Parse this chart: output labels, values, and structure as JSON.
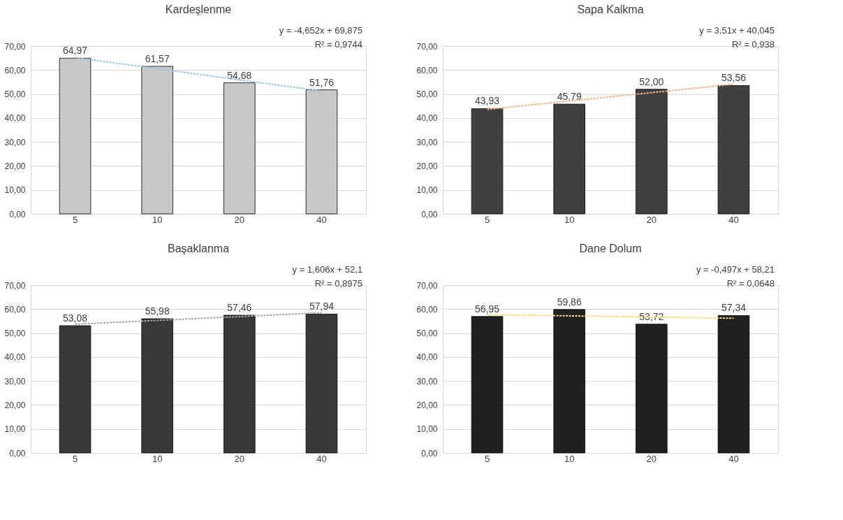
{
  "chart_data": [
    {
      "type": "bar",
      "title": "Kardeşlenme",
      "categories": [
        "5",
        "10",
        "20",
        "40"
      ],
      "ylim": [
        0,
        70
      ],
      "yticks": [
        {
          "value": 0,
          "label": "0,00"
        },
        {
          "value": 10,
          "label": "10,00"
        },
        {
          "value": 20,
          "label": "20,00"
        },
        {
          "value": 30,
          "label": "30,00"
        },
        {
          "value": 40,
          "label": "40,00"
        },
        {
          "value": 50,
          "label": "50,00"
        },
        {
          "value": 60,
          "label": "60,00"
        },
        {
          "value": 70,
          "label": "70,00"
        }
      ],
      "grid": "y",
      "annotations": [
        "y = -4,652x + 69,875",
        "R² = 0,9744"
      ],
      "series": [
        {
          "color": "#c8c8c8",
          "values": [
            64.97,
            61.57,
            54.68,
            51.76
          ],
          "value_labels": [
            "64,97",
            "61,57",
            "54,68",
            "51,76"
          ]
        },
        {
          "type": "line",
          "color": "#9dc3e6",
          "line_style": "dotted",
          "x": [
            "5",
            "10",
            "20",
            "40"
          ],
          "values": [
            65.2,
            60.6,
            55.9,
            51.3
          ]
        }
      ]
    },
    {
      "type": "bar",
      "title": "Sapa Kalkma",
      "categories": [
        "5",
        "10",
        "20",
        "40"
      ],
      "ylim": [
        0,
        70
      ],
      "yticks": [
        {
          "value": 0,
          "label": "0,00"
        },
        {
          "value": 10,
          "label": "10,00"
        },
        {
          "value": 20,
          "label": "20,00"
        },
        {
          "value": 30,
          "label": "30,00"
        },
        {
          "value": 40,
          "label": "40,00"
        },
        {
          "value": 50,
          "label": "50,00"
        },
        {
          "value": 60,
          "label": "60,00"
        },
        {
          "value": 70,
          "label": "70,00"
        }
      ],
      "grid": "y",
      "annotations": [
        "y = 3,51x + 40,045",
        "R² = 0,938"
      ],
      "series": [
        {
          "color": "#404040",
          "values": [
            43.93,
            45.79,
            52.0,
            53.56
          ],
          "value_labels": [
            "43,93",
            "45,79",
            "52,00",
            "53,56"
          ]
        },
        {
          "type": "line",
          "color": "#f4b183",
          "line_style": "dotted",
          "x": [
            "5",
            "10",
            "20",
            "40"
          ],
          "values": [
            43.6,
            47.1,
            50.6,
            54.1
          ]
        }
      ]
    },
    {
      "type": "bar",
      "title": "Başaklanma",
      "categories": [
        "5",
        "10",
        "20",
        "40"
      ],
      "ylim": [
        0,
        70
      ],
      "yticks": [
        {
          "value": 0,
          "label": "0,00"
        },
        {
          "value": 10,
          "label": "10,00"
        },
        {
          "value": 20,
          "label": "20,00"
        },
        {
          "value": 30,
          "label": "30,00"
        },
        {
          "value": 40,
          "label": "40,00"
        },
        {
          "value": 50,
          "label": "50,00"
        },
        {
          "value": 60,
          "label": "60,00"
        },
        {
          "value": 70,
          "label": "70,00"
        }
      ],
      "grid": "y",
      "annotations": [
        "y = 1,606x + 52,1",
        "R² = 0,8975"
      ],
      "series": [
        {
          "color": "#383838",
          "values": [
            53.08,
            55.98,
            57.46,
            57.94
          ],
          "value_labels": [
            "53,08",
            "55,98",
            "57,46",
            "57,94"
          ]
        },
        {
          "type": "line",
          "color": "#a5a5a5",
          "line_style": "dotted",
          "x": [
            "5",
            "10",
            "20",
            "40"
          ],
          "values": [
            53.7,
            55.3,
            56.9,
            58.5
          ]
        }
      ]
    },
    {
      "type": "bar",
      "title": "Dane Dolum",
      "categories": [
        "5",
        "10",
        "20",
        "40"
      ],
      "ylim": [
        0,
        70
      ],
      "yticks": [
        {
          "value": 0,
          "label": "0,00"
        },
        {
          "value": 10,
          "label": "10,00"
        },
        {
          "value": 20,
          "label": "20,00"
        },
        {
          "value": 30,
          "label": "30,00"
        },
        {
          "value": 40,
          "label": "40,00"
        },
        {
          "value": 50,
          "label": "50,00"
        },
        {
          "value": 60,
          "label": "60,00"
        },
        {
          "value": 70,
          "label": "70,00"
        }
      ],
      "grid": "y",
      "annotations": [
        "y = -0,497x + 58,21",
        "R² = 0,0648"
      ],
      "series": [
        {
          "color": "#202020",
          "values": [
            56.95,
            59.86,
            53.72,
            57.34
          ],
          "value_labels": [
            "56,95",
            "59,86",
            "53,72",
            "57,34"
          ]
        },
        {
          "type": "line",
          "color": "#ffd966",
          "line_style": "dotted",
          "x": [
            "5",
            "10",
            "20",
            "40"
          ],
          "values": [
            57.7,
            57.2,
            56.7,
            56.2
          ]
        }
      ]
    }
  ]
}
